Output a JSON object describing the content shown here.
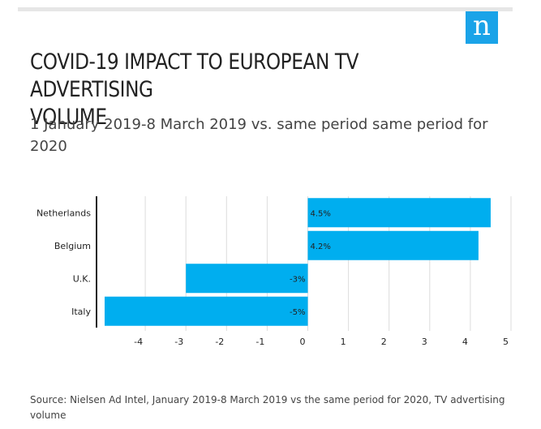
{
  "title_lines": [
    "COVID-19 IMPACT TO EUROPEAN TV ADVERTISING",
    "VOLUME"
  ],
  "subtitle": "1 January 2019-8 March 2019 vs. same period same period for 2020",
  "source": "Source: Nielsen Ad Intel, January 2019-8 March 2019 vs the same period for 2020, TV advertising volume",
  "logo_letter": "n",
  "colors": {
    "bar": "#00aeef",
    "grid": "#dcdcdc",
    "axis": "#222222",
    "logo": "#1aa3e8"
  },
  "chart_data": {
    "type": "bar",
    "orientation": "horizontal",
    "categories": [
      "Netherlands",
      "Belgium",
      "U.K.",
      "Italy"
    ],
    "values": [
      4.5,
      4.2,
      -3,
      -5
    ],
    "data_labels": [
      "4.5%",
      "4.2%",
      "-3%",
      "-5%"
    ],
    "xlim": [
      -5,
      5
    ],
    "xticks": [
      -4,
      -3,
      -2,
      -1,
      0,
      1,
      2,
      3,
      4,
      5
    ],
    "grid": true,
    "title": "COVID-19 IMPACT TO EUROPEAN TV ADVERTISING VOLUME",
    "xlabel": "",
    "ylabel": ""
  }
}
